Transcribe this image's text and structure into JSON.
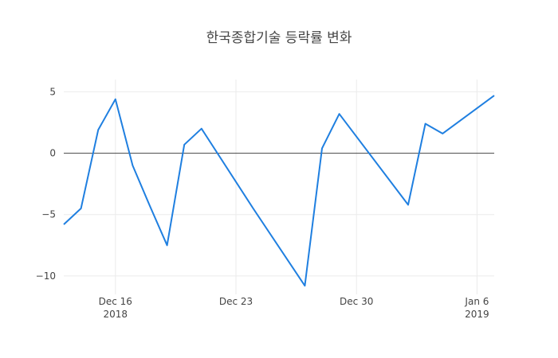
{
  "chart_data": {
    "type": "line",
    "title": "한국종합기술 등락률 변화",
    "xlabel": "",
    "ylabel": "",
    "x_range": [
      "2018-12-13",
      "2019-01-07"
    ],
    "ylim": [
      -11.5,
      6
    ],
    "grid": true,
    "zero_line": true,
    "line_color": "#1f7fe0",
    "y_ticks": [
      {
        "value": 5,
        "label": "5"
      },
      {
        "value": 0,
        "label": "0"
      },
      {
        "value": -5,
        "label": "−5"
      },
      {
        "value": -10,
        "label": "−10"
      }
    ],
    "x_ticks": [
      {
        "date": "2018-12-16",
        "label": "Dec 16",
        "sublabel": "2018"
      },
      {
        "date": "2018-12-23",
        "label": "Dec 23",
        "sublabel": ""
      },
      {
        "date": "2018-12-30",
        "label": "Dec 30",
        "sublabel": ""
      },
      {
        "date": "2019-01-06",
        "label": "Jan 6",
        "sublabel": "2019"
      }
    ],
    "series": [
      {
        "name": "",
        "x": [
          "2018-12-13",
          "2018-12-14",
          "2018-12-15",
          "2018-12-15",
          "2018-12-16",
          "2018-12-17",
          "2018-12-18",
          "2018-12-19",
          "2018-12-20",
          "2018-12-21",
          "2018-12-24",
          "2018-12-27",
          "2018-12-28",
          "2018-12-28",
          "2018-12-29",
          "2019-01-02",
          "2019-01-03",
          "2019-01-04",
          "2019-01-07"
        ],
        "y": [
          -5.8,
          -4.5,
          1.9,
          1.9,
          4.4,
          -1.0,
          -4.3,
          -7.5,
          0.7,
          2.0,
          -4.5,
          -10.8,
          0.4,
          0.4,
          3.2,
          -4.2,
          2.4,
          1.6,
          4.7
        ]
      }
    ]
  }
}
